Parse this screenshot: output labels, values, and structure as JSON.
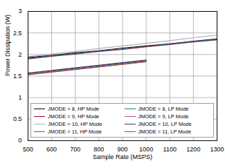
{
  "chart_data": {
    "type": "line",
    "x_label": "Sample Rate (MSPS)",
    "y_label": "Power Dissipation (W)",
    "x": [
      500,
      600,
      700,
      800,
      900,
      1000,
      1100,
      1200,
      1300
    ],
    "series": [
      {
        "name": "JMODE = 8, HP Mode",
        "color": "#000000",
        "values": [
          1.93,
          1.98,
          2.04,
          2.09,
          2.15,
          2.2,
          2.25,
          2.31,
          2.36
        ]
      },
      {
        "name": "JMODE = 8, LP Mode",
        "color": "#1f7a6a",
        "values": [
          1.55,
          1.61,
          1.68,
          1.74,
          1.8,
          1.86,
          null,
          null,
          null
        ]
      },
      {
        "name": "JMODE = 9, HP Mode",
        "color": "#a0001e",
        "values": [
          1.9,
          1.96,
          2.01,
          2.07,
          2.12,
          2.18,
          2.23,
          2.29,
          2.34
        ]
      },
      {
        "name": "JMODE = 9, LP Mode",
        "color": "#c0407a",
        "values": [
          1.53,
          1.59,
          1.65,
          1.71,
          1.77,
          1.83,
          null,
          null,
          null
        ]
      },
      {
        "name": "JMODE = 10, HP Mode",
        "color": "#b0b0b0",
        "values": [
          1.95,
          2.01,
          2.07,
          2.14,
          2.2,
          2.26,
          2.32,
          2.39,
          2.45
        ]
      },
      {
        "name": "JMODE = 10, LP Mode",
        "color": "#4b2e6e",
        "values": [
          1.57,
          1.63,
          1.69,
          1.75,
          1.81,
          1.87,
          null,
          null,
          null
        ]
      },
      {
        "name": "JMODE = 11, HP Mode",
        "color": "#2e6e8e",
        "values": [
          1.91,
          1.97,
          2.02,
          2.08,
          2.13,
          2.19,
          2.24,
          2.3,
          2.35
        ]
      },
      {
        "name": "JMODE = 11, LP Mode",
        "color": "#7a5a3a",
        "values": [
          1.54,
          1.6,
          1.66,
          1.72,
          1.78,
          1.84,
          null,
          null,
          null
        ]
      }
    ],
    "xlim": [
      500,
      1300
    ],
    "xticks": [
      500,
      600,
      700,
      800,
      900,
      1000,
      1100,
      1200,
      1300
    ],
    "ylim": [
      0,
      3
    ],
    "yticks": [
      0,
      0.5,
      1,
      1.5,
      2,
      2.5,
      3
    ],
    "grid": true,
    "legend": "bottom"
  }
}
